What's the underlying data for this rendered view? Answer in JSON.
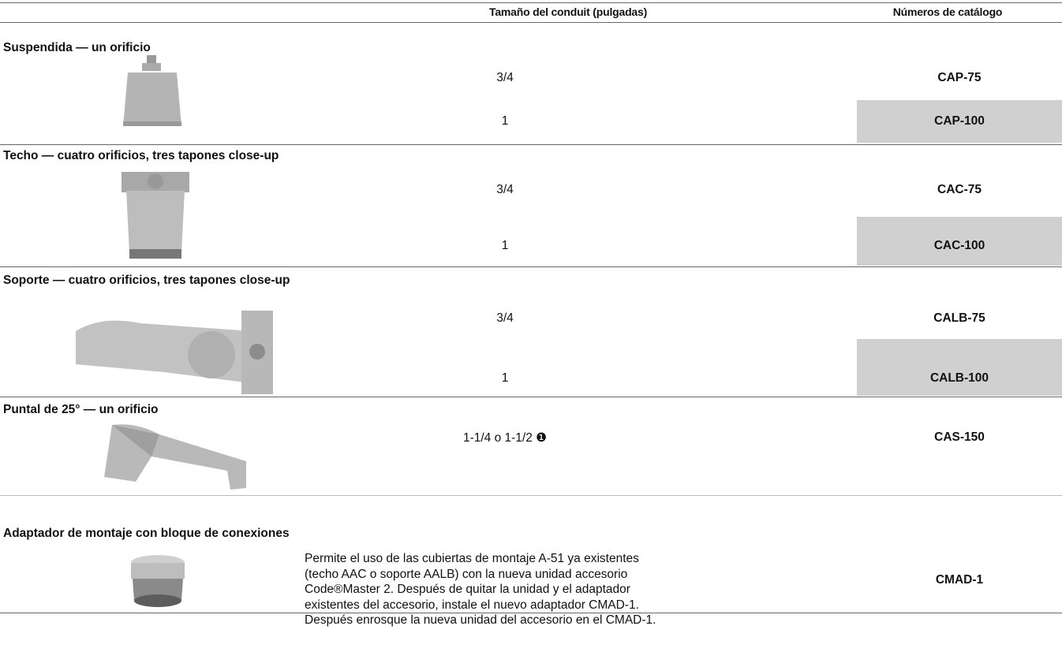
{
  "header": {
    "col2": "Tamaño del conduit (pulgadas)",
    "col3": "Números de catálogo"
  },
  "sections": [
    {
      "title": "Suspendida — un orificio",
      "rows": [
        {
          "size": "3/4",
          "catalog": "CAP-75"
        },
        {
          "size": "1",
          "catalog": "CAP-100"
        }
      ]
    },
    {
      "title": "Techo — cuatro orificios, tres tapones close-up",
      "rows": [
        {
          "size": "3/4",
          "catalog": "CAC-75"
        },
        {
          "size": "1",
          "catalog": "CAC-100"
        }
      ]
    },
    {
      "title": "Soporte — cuatro orificios, tres tapones close-up",
      "rows": [
        {
          "size": "3/4",
          "catalog": "CALB-75"
        },
        {
          "size": "1",
          "catalog": "CALB-100"
        }
      ]
    },
    {
      "title": "Puntal de 25° — un orificio",
      "rows": [
        {
          "size": "1-1/4 o 1-1/2 ❶",
          "catalog": "CAS-150"
        }
      ]
    },
    {
      "title": "Adaptador de montaje con bloque de conexiones",
      "description": [
        "Permite el uso de las cubiertas de montaje A-51 ya existentes",
        "(techo AAC o soporte AALB) con la nueva unidad accesorio",
        "Code®Master 2. Después de quitar la unidad y el adaptador",
        "existentes del accesorio, instale el nuevo adaptador CMAD-1.",
        "Después enrosque la nueva unidad del accesorio en el CMAD-1."
      ],
      "catalog": "CMAD-1"
    }
  ]
}
